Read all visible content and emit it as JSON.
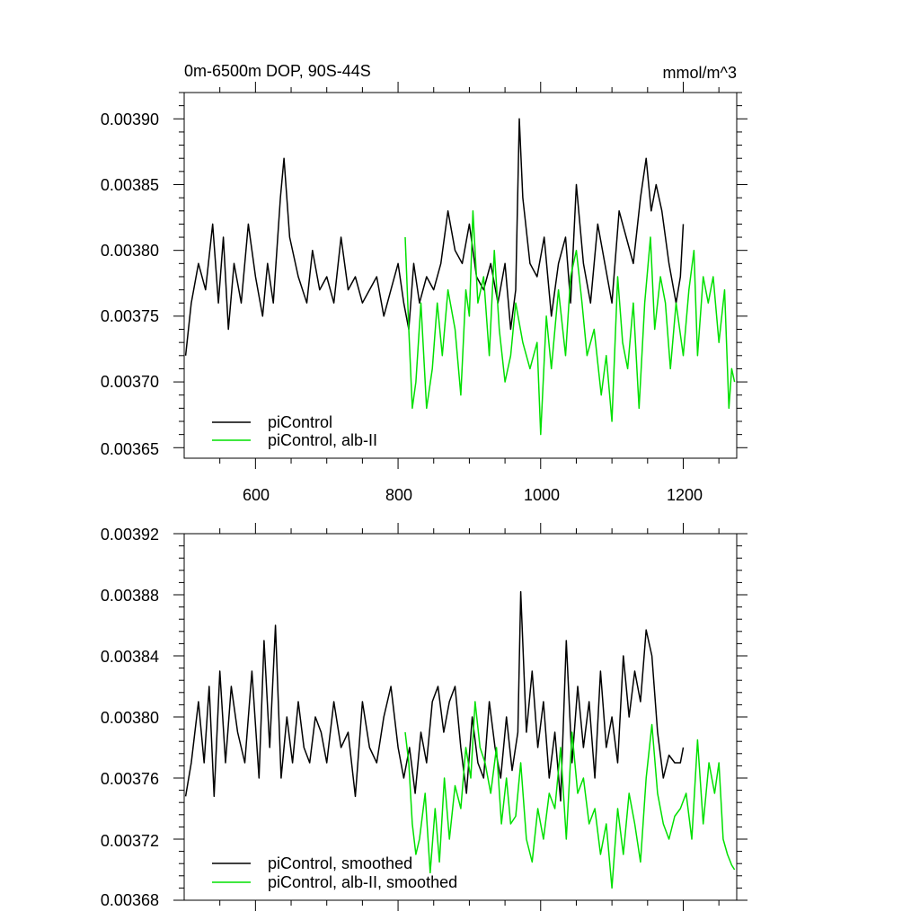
{
  "colors": {
    "picontrol": "#000000",
    "alb": "#00e000"
  },
  "chart_data": [
    {
      "type": "line",
      "title": "0m-6500m DOP, 90S-44S",
      "units": "mmol/m^3",
      "xlim": [
        500,
        1275
      ],
      "ylim": [
        0.003642,
        0.00392
      ],
      "xticks": [
        "600",
        "800",
        "1000",
        "1200"
      ],
      "yticks": [
        "0.00365",
        "0.00370",
        "0.00375",
        "0.00380",
        "0.00385",
        "0.00390"
      ],
      "legend": [
        "piControl",
        "piControl, alb-II"
      ],
      "series": [
        {
          "name": "piControl",
          "x": [
            502,
            510,
            520,
            530,
            540,
            548,
            555,
            562,
            570,
            580,
            590,
            600,
            610,
            617,
            625,
            635,
            640,
            648,
            660,
            672,
            680,
            690,
            700,
            710,
            720,
            730,
            740,
            750,
            760,
            770,
            780,
            790,
            800,
            808,
            815,
            822,
            830,
            840,
            850,
            860,
            870,
            880,
            890,
            900,
            910,
            920,
            930,
            940,
            950,
            958,
            965,
            970,
            975,
            985,
            995,
            1005,
            1015,
            1025,
            1035,
            1042,
            1050,
            1060,
            1070,
            1080,
            1090,
            1100,
            1110,
            1120,
            1130,
            1140,
            1148,
            1155,
            1162,
            1170,
            1180,
            1190,
            1196,
            1200
          ],
          "values": [
            0.00372,
            0.00376,
            0.00379,
            0.00377,
            0.00382,
            0.00376,
            0.00381,
            0.00374,
            0.00379,
            0.00376,
            0.00382,
            0.00378,
            0.00375,
            0.00379,
            0.00376,
            0.00384,
            0.00387,
            0.00381,
            0.00378,
            0.00376,
            0.0038,
            0.00377,
            0.00378,
            0.00376,
            0.00381,
            0.00377,
            0.00378,
            0.00376,
            0.00377,
            0.00378,
            0.00375,
            0.00377,
            0.00379,
            0.00376,
            0.00374,
            0.00379,
            0.00376,
            0.00378,
            0.00377,
            0.00379,
            0.00383,
            0.0038,
            0.00379,
            0.00382,
            0.00378,
            0.00377,
            0.00379,
            0.00376,
            0.00379,
            0.00374,
            0.00377,
            0.0039,
            0.00384,
            0.00379,
            0.00378,
            0.00381,
            0.00375,
            0.00379,
            0.00381,
            0.00376,
            0.00385,
            0.00379,
            0.00376,
            0.00382,
            0.00379,
            0.00376,
            0.00383,
            0.00381,
            0.00379,
            0.00384,
            0.00387,
            0.00383,
            0.00385,
            0.00383,
            0.00379,
            0.00376,
            0.00378,
            0.00382
          ]
        },
        {
          "name": "piControl, alb-II",
          "x": [
            810,
            815,
            820,
            825,
            832,
            840,
            848,
            855,
            862,
            870,
            880,
            888,
            895,
            900,
            905,
            912,
            920,
            928,
            935,
            942,
            950,
            958,
            965,
            975,
            985,
            995,
            1000,
            1008,
            1015,
            1025,
            1035,
            1042,
            1050,
            1058,
            1065,
            1075,
            1085,
            1092,
            1100,
            1108,
            1115,
            1122,
            1130,
            1138,
            1146,
            1154,
            1160,
            1168,
            1175,
            1182,
            1190,
            1200,
            1208,
            1215,
            1220,
            1228,
            1235,
            1242,
            1250,
            1258,
            1264,
            1268,
            1272
          ],
          "values": [
            0.00381,
            0.00374,
            0.00368,
            0.0037,
            0.00376,
            0.00368,
            0.00371,
            0.00376,
            0.00372,
            0.00377,
            0.00374,
            0.00369,
            0.00377,
            0.00375,
            0.00383,
            0.00376,
            0.00378,
            0.00372,
            0.0038,
            0.00374,
            0.0037,
            0.00372,
            0.00376,
            0.00373,
            0.00371,
            0.00373,
            0.00366,
            0.00375,
            0.00371,
            0.00377,
            0.00372,
            0.00378,
            0.0038,
            0.00376,
            0.00372,
            0.00374,
            0.00369,
            0.00372,
            0.00367,
            0.00378,
            0.00373,
            0.00371,
            0.00376,
            0.00368,
            0.00376,
            0.00381,
            0.00374,
            0.00378,
            0.00376,
            0.00371,
            0.00376,
            0.00372,
            0.00377,
            0.0038,
            0.00372,
            0.00378,
            0.00376,
            0.00378,
            0.00373,
            0.00377,
            0.00368,
            0.00371,
            0.0037
          ]
        }
      ]
    },
    {
      "type": "line",
      "xlim": [
        500,
        1275
      ],
      "ylim": [
        0.00368,
        0.00392
      ],
      "yticks": [
        "0.00368",
        "0.00372",
        "0.00376",
        "0.00380",
        "0.00384",
        "0.00388",
        "0.00392"
      ],
      "legend": [
        "piControl, smoothed",
        "piControl, alb-II, smoothed"
      ],
      "series": [
        {
          "name": "piControl, smoothed",
          "x": [
            502,
            510,
            520,
            528,
            535,
            542,
            550,
            558,
            566,
            575,
            585,
            595,
            605,
            612,
            620,
            628,
            636,
            644,
            652,
            660,
            668,
            676,
            684,
            692,
            700,
            710,
            720,
            730,
            740,
            750,
            760,
            770,
            780,
            790,
            800,
            808,
            816,
            824,
            832,
            840,
            848,
            856,
            864,
            872,
            880,
            888,
            896,
            904,
            912,
            920,
            928,
            936,
            944,
            952,
            960,
            968,
            972,
            980,
            988,
            996,
            1004,
            1012,
            1020,
            1028,
            1036,
            1044,
            1052,
            1060,
            1068,
            1076,
            1084,
            1092,
            1100,
            1108,
            1116,
            1124,
            1132,
            1140,
            1148,
            1156,
            1164,
            1172,
            1180,
            1188,
            1196,
            1200
          ],
          "values": [
            0.003748,
            0.00377,
            0.00381,
            0.00377,
            0.00382,
            0.003748,
            0.00383,
            0.00377,
            0.00382,
            0.00379,
            0.00377,
            0.00383,
            0.00376,
            0.00385,
            0.00378,
            0.00386,
            0.00376,
            0.0038,
            0.00377,
            0.00381,
            0.00378,
            0.00377,
            0.0038,
            0.00379,
            0.00377,
            0.00381,
            0.00378,
            0.00379,
            0.003748,
            0.00381,
            0.00378,
            0.00377,
            0.0038,
            0.00382,
            0.00378,
            0.00376,
            0.00378,
            0.00375,
            0.00379,
            0.00377,
            0.00381,
            0.00382,
            0.00379,
            0.00381,
            0.00382,
            0.00378,
            0.00375,
            0.0038,
            0.00377,
            0.00376,
            0.00381,
            0.00378,
            0.00376,
            0.0038,
            0.003765,
            0.00379,
            0.003882,
            0.00379,
            0.00383,
            0.00378,
            0.00381,
            0.00376,
            0.00379,
            0.003745,
            0.00385,
            0.00377,
            0.00382,
            0.00378,
            0.00381,
            0.00376,
            0.00383,
            0.00378,
            0.0038,
            0.00377,
            0.00384,
            0.0038,
            0.00383,
            0.00381,
            0.003857,
            0.00384,
            0.00379,
            0.00376,
            0.003775,
            0.00377,
            0.00377,
            0.00378
          ]
        },
        {
          "name": "piControl, alb-II, smoothed",
          "x": [
            810,
            815,
            820,
            825,
            830,
            838,
            845,
            852,
            858,
            865,
            872,
            880,
            888,
            895,
            902,
            908,
            915,
            922,
            930,
            938,
            945,
            952,
            958,
            965,
            972,
            980,
            988,
            996,
            1004,
            1012,
            1020,
            1028,
            1036,
            1044,
            1052,
            1060,
            1068,
            1076,
            1084,
            1092,
            1100,
            1108,
            1116,
            1124,
            1132,
            1140,
            1148,
            1156,
            1164,
            1172,
            1180,
            1188,
            1196,
            1204,
            1212,
            1220,
            1228,
            1236,
            1244,
            1250,
            1256,
            1262,
            1268,
            1272
          ],
          "values": [
            0.00379,
            0.00377,
            0.00373,
            0.00371,
            0.00372,
            0.00375,
            0.003698,
            0.00374,
            0.003705,
            0.00376,
            0.00372,
            0.003755,
            0.00374,
            0.00378,
            0.00376,
            0.00381,
            0.00378,
            0.00377,
            0.00375,
            0.00378,
            0.00373,
            0.00376,
            0.00373,
            0.003735,
            0.00377,
            0.00372,
            0.003705,
            0.00374,
            0.00372,
            0.00375,
            0.00374,
            0.00378,
            0.00372,
            0.00379,
            0.00375,
            0.00376,
            0.00373,
            0.00374,
            0.00371,
            0.00373,
            0.003688,
            0.00374,
            0.00371,
            0.00375,
            0.00373,
            0.003705,
            0.00376,
            0.003795,
            0.00375,
            0.00373,
            0.00372,
            0.003735,
            0.00374,
            0.00375,
            0.00372,
            0.003785,
            0.00373,
            0.00377,
            0.00375,
            0.00377,
            0.00372,
            0.00371,
            0.003703,
            0.0037
          ]
        }
      ]
    }
  ]
}
